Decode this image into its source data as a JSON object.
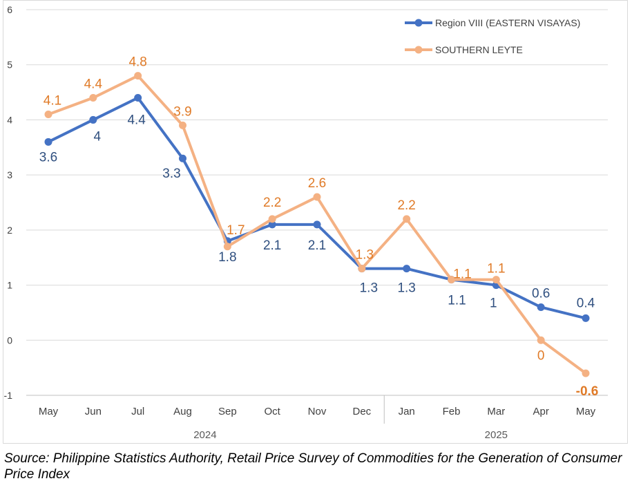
{
  "chart_data": {
    "type": "line",
    "categories": [
      "May",
      "Jun",
      "Jul",
      "Aug",
      "Sep",
      "Oct",
      "Nov",
      "Dec",
      "Jan",
      "Feb",
      "Mar",
      "Apr",
      "May"
    ],
    "year_groups": [
      {
        "label": "2024",
        "start": 0,
        "end": 7
      },
      {
        "label": "2025",
        "start": 8,
        "end": 12
      }
    ],
    "series": [
      {
        "name": "Region VIII (EASTERN VISAYAS)",
        "color": "#4472c4",
        "label_color": "#2f4f7f",
        "values": [
          3.6,
          4,
          4.4,
          3.3,
          1.8,
          2.1,
          2.1,
          1.3,
          1.3,
          1.1,
          1,
          0.6,
          0.4
        ],
        "labels": [
          "3.6",
          "4",
          "4.4",
          "3.3",
          "1.8",
          "2.1",
          "2.1",
          "1.3",
          "1.3",
          "1.1",
          "1",
          "0.6",
          "0.4"
        ]
      },
      {
        "name": "SOUTHERN LEYTE",
        "color": "#f4b183",
        "label_color": "#e07b28",
        "values": [
          4.1,
          4.4,
          4.8,
          3.9,
          1.7,
          2.2,
          2.6,
          1.3,
          2.2,
          1.1,
          1.1,
          0,
          -0.6
        ],
        "labels": [
          "4.1",
          "4.4",
          "4.8",
          "3.9",
          "1.7",
          "2.2",
          "2.6",
          "1.3",
          "2.2",
          "1.1",
          "1.1",
          "0",
          "-0.6"
        ]
      }
    ],
    "yticks": [
      "-1",
      "0",
      "1",
      "2",
      "3",
      "4",
      "5",
      "6"
    ],
    "ylim": [
      -1,
      6
    ],
    "grid": true,
    "legend_position": "top-right"
  },
  "footer": {
    "source": "Source: Philippine Statistics Authority, Retail Price Survey of Commodities for the Generation of Consumer Price Index"
  }
}
